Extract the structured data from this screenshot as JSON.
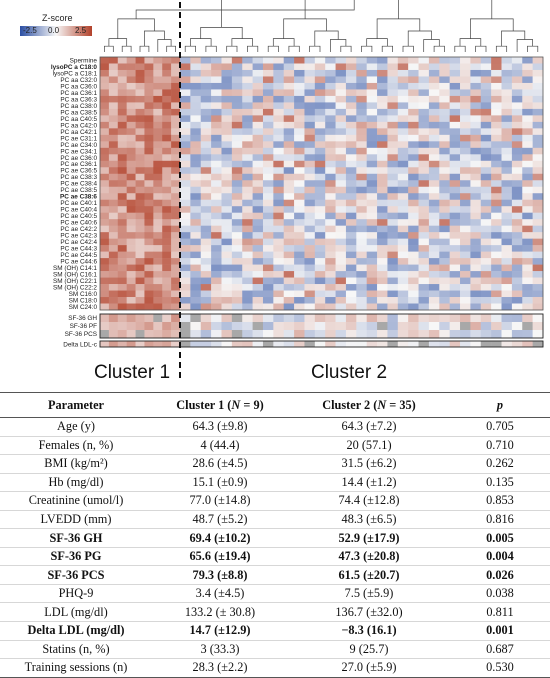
{
  "chart_data": {
    "type": "heatmap",
    "legend": {
      "title": "Z-score",
      "ticks": [
        "-2.5",
        "0.0",
        "2.5"
      ],
      "colors": {
        "low": "#2c4fa3",
        "mid": "#f7f7f7",
        "high": "#b2412a"
      }
    },
    "rows": [
      "Spermine",
      "lysoPC a C18:0",
      "lysoPC a C18:1",
      "PC aa C32:0",
      "PC aa C36:0",
      "PC aa C36:1",
      "PC aa C36:3",
      "PC aa C38:0",
      "PC aa C38:5",
      "PC aa C40:5",
      "PC aa C42:0",
      "PC aa C42:1",
      "PC ae C31:1",
      "PC ae C34:0",
      "PC ae C34:1",
      "PC ae C36:0",
      "PC ae C36:1",
      "PC ae C36:5",
      "PC ae C38:3",
      "PC ae C38:4",
      "PC ae C38:5",
      "PC ae C38:6",
      "PC ae C40:1",
      "PC ae C40:4",
      "PC ae C40:5",
      "PC ae C40:6",
      "PC ae C42:2",
      "PC ae C42:3",
      "PC ae C42:4",
      "PC ae C44:3",
      "PC ae C44:5",
      "PC ae C44:6",
      "SM (OH) C14:1",
      "SM (OH) C16:1",
      "SM (OH) C22:1",
      "SM (OH) C22:2",
      "SM C16:0",
      "SM C18:0",
      "SM C24:0"
    ],
    "bold_rows": [
      "lysoPC a C18:0",
      "PC ae C38:6"
    ],
    "clinical_rows": [
      "SF-36 GH",
      "SF-36 PF",
      "SF-36 PCS"
    ],
    "extra_rows": [
      "Delta LDL-c"
    ],
    "clusters": [
      {
        "name": "Cluster 1",
        "n_columns": 9
      },
      {
        "name": "Cluster 2",
        "n_columns": 35
      }
    ]
  },
  "table": {
    "headers": {
      "parameter": "Parameter",
      "c1_prefix": "Cluster 1 (",
      "c1_n": "N",
      "c1_suffix": " = 9)",
      "c2_prefix": "Cluster 2 (",
      "c2_n": "N",
      "c2_suffix": " = 35)",
      "p": "p"
    },
    "rows": [
      {
        "param": "Age (y)",
        "c1": "64.3 (±9.8)",
        "c2": "64.3 (±7.2)",
        "p": "0.705",
        "bold": false
      },
      {
        "param": "Females (n, %)",
        "c1": "4 (44.4)",
        "c2": "20 (57.1)",
        "p": "0.710",
        "bold": false
      },
      {
        "param": "BMI (kg/m²)",
        "c1": "28.6 (±4.5)",
        "c2": "31.5 (±6.2)",
        "p": "0.262",
        "bold": false
      },
      {
        "param": "Hb (mg/dl)",
        "c1": "15.1 (±0.9)",
        "c2": "14.4 (±1.2)",
        "p": "0.135",
        "bold": false
      },
      {
        "param": "Creatinine (umol/l)",
        "c1": "77.0 (±14.8)",
        "c2": "74.4 (±12.8)",
        "p": "0.853",
        "bold": false
      },
      {
        "param": "LVEDD (mm)",
        "c1": "48.7 (±5.2)",
        "c2": "48.3 (±6.5)",
        "p": "0.816",
        "bold": false
      },
      {
        "param": "SF-36 GH",
        "c1": "69.4 (±10.2)",
        "c2": "52.9 (±17.9)",
        "p": "0.005",
        "bold": true
      },
      {
        "param": "SF-36 PG",
        "c1": "65.6 (±19.4)",
        "c2": "47.3 (±20.8)",
        "p": "0.004",
        "bold": true
      },
      {
        "param": "SF-36 PCS",
        "c1": "79.3 (±8.8)",
        "c2": "61.5 (±20.7)",
        "p": "0.026",
        "bold": true
      },
      {
        "param": "PHQ-9",
        "c1": "3.4 (±4.5)",
        "c2": "7.5 (±5.9)",
        "p": "0.038",
        "bold": false
      },
      {
        "param": "LDL (mg/dl)",
        "c1": "133.2 (± 30.8)",
        "c2": "136.7 (±32.0)",
        "p": "0.811",
        "bold": false
      },
      {
        "param": "Delta LDL (mg/dl)",
        "c1": "14.7 (±12.9)",
        "c2": "−8.3 (16.1)",
        "p": "0.001",
        "bold": true
      },
      {
        "param": "Statins (n, %)",
        "c1": "3 (33.3)",
        "c2": "9 (25.7)",
        "p": "0.687",
        "bold": false
      },
      {
        "param": "Training sessions (n)",
        "c1": "28.3 (±2.2)",
        "c2": "27.0 (±5.9)",
        "p": "0.530",
        "bold": false
      }
    ]
  }
}
